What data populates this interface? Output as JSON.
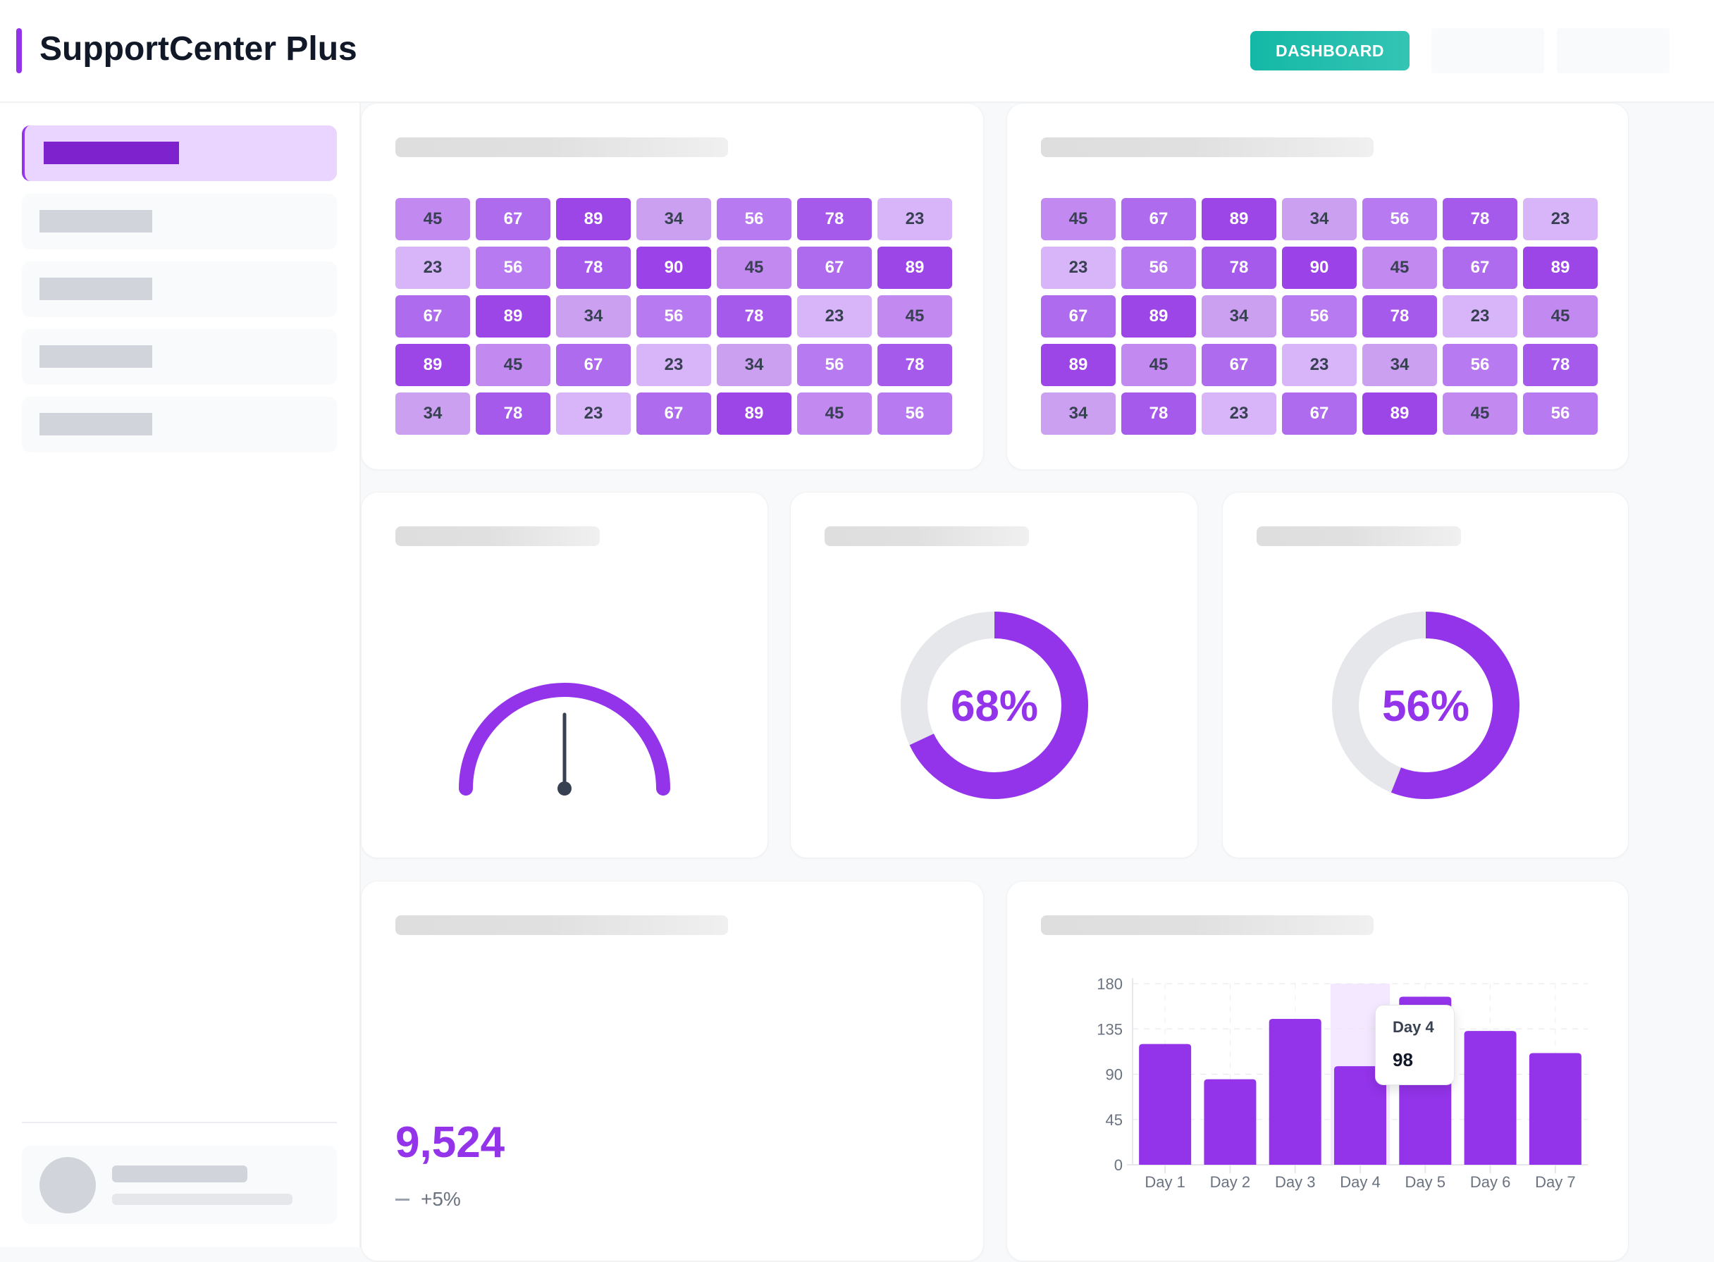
{
  "header": {
    "title": "SupportCenter Plus",
    "dashboard_button": "DASHBOARD"
  },
  "colors": {
    "accent": "#9333ea",
    "teal": "#14b8a6",
    "active_bg": "#e9d5ff"
  },
  "heatmaps": [
    {
      "rows": [
        [
          45,
          67,
          89,
          34,
          56,
          78,
          23
        ],
        [
          23,
          56,
          78,
          90,
          45,
          67,
          89
        ],
        [
          67,
          89,
          34,
          56,
          78,
          23,
          45
        ],
        [
          89,
          45,
          67,
          23,
          34,
          56,
          78
        ],
        [
          34,
          78,
          23,
          67,
          89,
          45,
          56
        ]
      ]
    },
    {
      "rows": [
        [
          45,
          67,
          89,
          34,
          56,
          78,
          23
        ],
        [
          23,
          56,
          78,
          90,
          45,
          67,
          89
        ],
        [
          67,
          89,
          34,
          56,
          78,
          23,
          45
        ],
        [
          89,
          45,
          67,
          23,
          34,
          56,
          78
        ],
        [
          34,
          78,
          23,
          67,
          89,
          45,
          56
        ]
      ]
    }
  ],
  "gauge": {
    "value_percent": 50
  },
  "donuts": [
    {
      "value": 68,
      "label": "68%"
    },
    {
      "value": 56,
      "label": "56%"
    }
  ],
  "kpi": {
    "value": "9,524",
    "change": "+5%",
    "trend_icon": "dash-icon"
  },
  "chart_data": {
    "type": "bar",
    "categories": [
      "Day 1",
      "Day 2",
      "Day 3",
      "Day 4",
      "Day 5",
      "Day 6",
      "Day 7"
    ],
    "values": [
      120,
      85,
      145,
      98,
      167,
      133,
      111
    ],
    "ylim": [
      0,
      180
    ],
    "yticks": [
      "0",
      "45",
      "90",
      "135",
      "180"
    ],
    "grid": true,
    "color": "#9333ea",
    "tooltip": {
      "category": "Day 4",
      "value": "98"
    }
  }
}
